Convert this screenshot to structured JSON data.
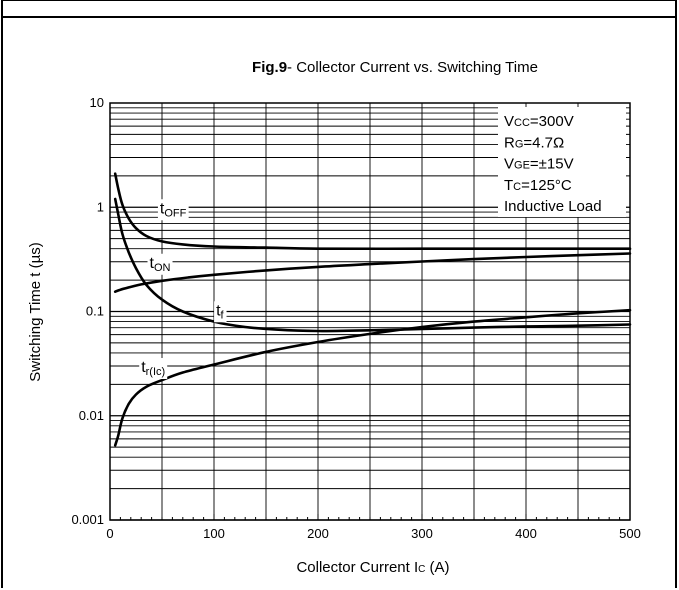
{
  "chart_data": {
    "type": "line",
    "title_bold": "Fig.9",
    "title_rest": "- Collector Current vs. Switching Time",
    "xlabel_main": "Collector Current I",
    "xlabel_sub": "C",
    "xlabel_unit": "  (A)",
    "ylabel": "Switching Time t  (µs)",
    "x_scale": "linear",
    "y_scale": "log",
    "xlim": [
      0,
      500
    ],
    "ylim": [
      0.001,
      10
    ],
    "grid": true,
    "x_ticks": [
      0,
      100,
      200,
      300,
      400,
      500
    ],
    "x_tick_labels": [
      "0",
      "100",
      "200",
      "300",
      "400",
      "500"
    ],
    "y_ticks": [
      0.001,
      0.01,
      0.1,
      1,
      10
    ],
    "y_tick_labels": [
      "0.001",
      "0.01",
      "0.1",
      "1",
      "10"
    ],
    "series": [
      {
        "name": "tOFF",
        "label_main": "t",
        "label_sub": "OFF",
        "label_at": [
          48,
          1.0
        ],
        "x": [
          5,
          8,
          12,
          18,
          25,
          35,
          50,
          70,
          100,
          150,
          200,
          300,
          400,
          500
        ],
        "values": [
          2.1,
          1.5,
          1.05,
          0.78,
          0.63,
          0.53,
          0.47,
          0.44,
          0.42,
          0.41,
          0.4,
          0.4,
          0.4,
          0.4
        ]
      },
      {
        "name": "tON",
        "label_main": "t",
        "label_sub": "ON",
        "label_at": [
          38,
          0.3
        ],
        "x": [
          5,
          10,
          20,
          30,
          50,
          75,
          100,
          150,
          200,
          250,
          300,
          350,
          400,
          450,
          500
        ],
        "values": [
          0.155,
          0.162,
          0.172,
          0.182,
          0.197,
          0.212,
          0.225,
          0.248,
          0.268,
          0.285,
          0.302,
          0.318,
          0.333,
          0.347,
          0.36
        ]
      },
      {
        "name": "tf",
        "label_main": "t",
        "label_sub": "f",
        "label_at": [
          102,
          0.105
        ],
        "x": [
          5,
          8,
          12,
          18,
          25,
          35,
          50,
          70,
          100,
          130,
          160,
          200,
          250,
          300,
          350,
          400,
          450,
          500
        ],
        "values": [
          1.2,
          0.85,
          0.55,
          0.37,
          0.26,
          0.18,
          0.13,
          0.1,
          0.08,
          0.071,
          0.067,
          0.065,
          0.066,
          0.068,
          0.07,
          0.072,
          0.073,
          0.075
        ]
      },
      {
        "name": "tr(Ic)",
        "label_main": "t",
        "label_sub": "r(Ic)",
        "label_at": [
          30,
          0.03
        ],
        "x": [
          5,
          8,
          12,
          18,
          25,
          35,
          50,
          70,
          100,
          150,
          200,
          250,
          300,
          350,
          400,
          450,
          500
        ],
        "values": [
          0.0052,
          0.0065,
          0.0095,
          0.013,
          0.016,
          0.019,
          0.022,
          0.026,
          0.031,
          0.041,
          0.051,
          0.061,
          0.071,
          0.08,
          0.088,
          0.096,
          0.103
        ]
      }
    ],
    "conditions": [
      {
        "main": "V",
        "sub": "CC",
        "rest": "=300V"
      },
      {
        "main": "R",
        "sub": "G",
        "rest": "=4.7Ω"
      },
      {
        "main": "V",
        "sub": "GE",
        "rest": "=±15V"
      },
      {
        "main": "T",
        "sub": "C",
        "rest": "=125°C"
      },
      {
        "main": "Inductive Load",
        "sub": "",
        "rest": ""
      }
    ]
  }
}
